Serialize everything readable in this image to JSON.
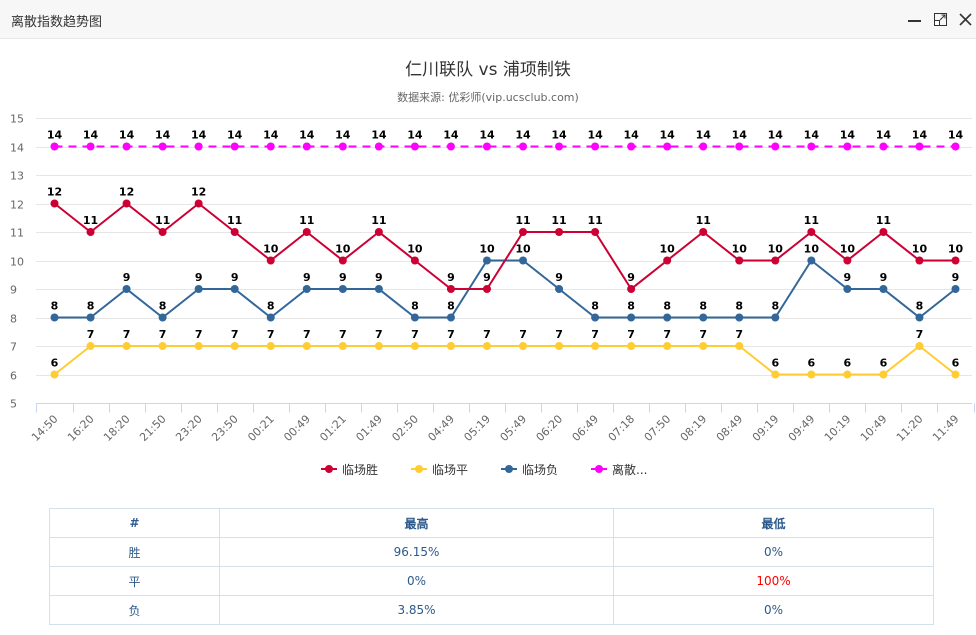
{
  "window": {
    "title": "离散指数趋势图",
    "buttons": {
      "minimize": "minimize-icon",
      "maximize": "maximize-icon",
      "close": "close-icon"
    }
  },
  "header": {
    "title": "仁川联队 vs 浦项制铁",
    "subtitle": "数据来源: 优彩师(vip.ucsclub.com)"
  },
  "legend": [
    {
      "label": "临场胜",
      "color": "#cc0033",
      "dashed": false
    },
    {
      "label": "临场平",
      "color": "#ffcc33",
      "dashed": false
    },
    {
      "label": "临场负",
      "color": "#336699",
      "dashed": false
    },
    {
      "label": "离散...",
      "color": "#ff00ff",
      "dashed": true
    }
  ],
  "chart_data": {
    "type": "line",
    "title": "仁川联队 vs 浦项制铁",
    "subtitle": "数据来源: 优彩师(vip.ucsclub.com)",
    "xlabel": "",
    "ylabel": "",
    "ylim": [
      5,
      15
    ],
    "yticks": [
      5,
      6,
      7,
      8,
      9,
      10,
      11,
      12,
      13,
      14,
      15
    ],
    "grid": true,
    "legend_position": "bottom",
    "categories": [
      "14:50",
      "16:20",
      "18:20",
      "21:50",
      "23:20",
      "23:50",
      "00:21",
      "00:49",
      "01:21",
      "01:49",
      "02:50",
      "04:49",
      "05:19",
      "05:49",
      "06:20",
      "06:49",
      "07:18",
      "07:50",
      "08:19",
      "08:49",
      "09:19",
      "09:49",
      "10:19",
      "10:49",
      "11:20",
      "11:49"
    ],
    "series": [
      {
        "name": "临场胜",
        "color": "#cc0033",
        "dashed": false,
        "values": [
          12,
          11,
          12,
          11,
          12,
          11,
          10,
          11,
          10,
          11,
          10,
          9,
          9,
          11,
          11,
          11,
          9,
          10,
          11,
          10,
          10,
          11,
          10,
          11,
          10,
          10
        ]
      },
      {
        "name": "临场平",
        "color": "#ffcc33",
        "dashed": false,
        "values": [
          6,
          7,
          7,
          7,
          7,
          7,
          7,
          7,
          7,
          7,
          7,
          7,
          7,
          7,
          7,
          7,
          7,
          7,
          7,
          7,
          6,
          6,
          6,
          6,
          7,
          6
        ]
      },
      {
        "name": "临场负",
        "color": "#336699",
        "dashed": false,
        "values": [
          8,
          8,
          9,
          8,
          9,
          9,
          8,
          9,
          9,
          9,
          8,
          8,
          10,
          10,
          9,
          8,
          8,
          8,
          8,
          8,
          8,
          10,
          9,
          9,
          8,
          9
        ]
      },
      {
        "name": "离散...",
        "color": "#ff00ff",
        "dashed": true,
        "values": [
          14,
          14,
          14,
          14,
          14,
          14,
          14,
          14,
          14,
          14,
          14,
          14,
          14,
          14,
          14,
          14,
          14,
          14,
          14,
          14,
          14,
          14,
          14,
          14,
          14,
          14
        ]
      }
    ]
  },
  "table": {
    "headers": [
      "#",
      "最高",
      "最低"
    ],
    "rows": [
      {
        "label": "胜",
        "high": "96.15%",
        "low": "0%",
        "low_highlight": false
      },
      {
        "label": "平",
        "high": "0%",
        "low": "100%",
        "low_highlight": true
      },
      {
        "label": "负",
        "high": "3.85%",
        "low": "0%",
        "low_highlight": false
      }
    ]
  }
}
